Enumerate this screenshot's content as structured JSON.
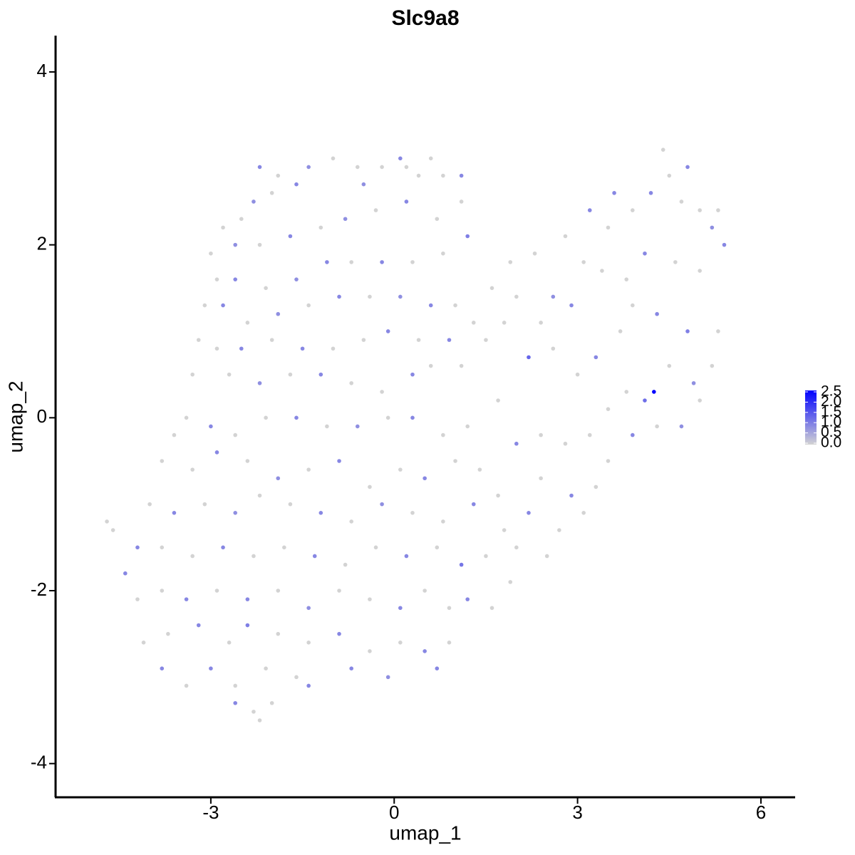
{
  "chart_data": {
    "type": "scatter",
    "title": "Slc9a8",
    "xlabel": "umap_1",
    "ylabel": "umap_2",
    "xlim": [
      -5.54,
      6.56
    ],
    "ylim": [
      -4.39,
      4.42
    ],
    "xticks": [
      -3,
      0,
      3,
      6
    ],
    "yticks": [
      -4,
      -2,
      0,
      2,
      4
    ],
    "color_low": "#d3d3d3",
    "color_high": "#0000ff",
    "color_lim": [
      0,
      2.5
    ],
    "color_ticks": [
      {
        "value": 0,
        "label": "0.0"
      },
      {
        "value": 0.5,
        "label": "0.5"
      },
      {
        "value": 1,
        "label": "1.0"
      },
      {
        "value": 1.5,
        "label": "1.5"
      },
      {
        "value": 2,
        "label": "2.0"
      },
      {
        "value": 2.5,
        "label": "2.5"
      }
    ],
    "x": [
      -2.2,
      -1.9,
      -1.4,
      -1.0,
      -0.6,
      -0.2,
      0.1,
      0.2,
      0.6,
      1.1,
      0.8,
      0.4,
      -0.5,
      -1.6,
      -2.0,
      -2.3,
      -2.5,
      -2.8,
      -2.6,
      -2.2,
      -1.7,
      -1.2,
      -0.8,
      -0.3,
      0.2,
      0.7,
      1.2,
      1.1,
      -3.0,
      -2.9,
      -2.6,
      -2.1,
      -1.6,
      -1.1,
      -0.7,
      -0.2,
      0.3,
      0.8,
      -3.1,
      -2.8,
      -2.4,
      -1.9,
      -1.4,
      -0.9,
      -0.4,
      0.1,
      0.6,
      1.0,
      1.3,
      -3.2,
      -2.9,
      -2.5,
      -2.0,
      -1.5,
      -1.0,
      -0.5,
      -0.1,
      0.4,
      0.9,
      -3.3,
      -2.7,
      -2.2,
      -1.7,
      -1.2,
      -0.7,
      -0.2,
      0.3,
      0.6,
      1.1,
      -3.6,
      -3.4,
      -3.0,
      -2.6,
      -2.1,
      -1.6,
      -1.1,
      -0.6,
      -0.1,
      0.3,
      0.8,
      1.2,
      -3.8,
      -3.3,
      -2.9,
      -2.4,
      -1.9,
      -1.4,
      -0.9,
      -0.4,
      0.1,
      0.5,
      1.0,
      1.4,
      -4.0,
      -3.6,
      -3.1,
      -2.6,
      -2.2,
      -1.7,
      -1.2,
      -0.7,
      -0.2,
      0.3,
      0.8,
      1.3,
      1.7,
      -4.7,
      -4.6,
      -4.2,
      -3.8,
      -3.3,
      -2.8,
      -2.3,
      -1.8,
      -1.3,
      -0.8,
      -0.3,
      0.2,
      0.7,
      1.1,
      1.5,
      2.0,
      -4.4,
      -4.2,
      -3.8,
      -3.4,
      -2.9,
      -2.4,
      -1.9,
      -1.4,
      -0.9,
      -0.4,
      0.1,
      0.5,
      0.9,
      1.2,
      -4.1,
      -3.7,
      -3.2,
      -2.7,
      -2.4,
      -1.9,
      -1.4,
      -0.9,
      -0.4,
      0.1,
      0.5,
      0.9,
      -3.8,
      -3.4,
      -3.0,
      -2.6,
      -2.1,
      -1.6,
      -1.4,
      -0.7,
      -0.1,
      0.7,
      -2.6,
      -2.3,
      -2.2,
      -2.0,
      1.6,
      1.9,
      2.0,
      2.3,
      2.6,
      2.8,
      3.1,
      3.2,
      3.5,
      3.6,
      3.9,
      4.2,
      4.4,
      4.5,
      4.8,
      4.7,
      5.0,
      5.2,
      5.3,
      5.4,
      5.0,
      4.6,
      4.1,
      3.8,
      3.4,
      2.9,
      2.4,
      1.8,
      1.5,
      2.2,
      2.6,
      3.0,
      3.3,
      3.7,
      3.9,
      4.3,
      4.8,
      5.3,
      5.2,
      4.9,
      4.5,
      4.25,
      4.1,
      3.8,
      3.5,
      3.2,
      3.5,
      3.9,
      4.3,
      4.7,
      5.0,
      2.8,
      2.4,
      2.0,
      1.7,
      2.4,
      2.9,
      3.1,
      2.7,
      2.2,
      1.8,
      3.3,
      2.5,
      1.9,
      1.6
    ],
    "y": [
      2.9,
      2.8,
      2.9,
      3.0,
      2.9,
      2.9,
      3.0,
      2.9,
      3.0,
      2.8,
      2.8,
      2.8,
      2.7,
      2.7,
      2.6,
      2.5,
      2.3,
      2.2,
      2.0,
      2.0,
      2.1,
      2.2,
      2.3,
      2.4,
      2.5,
      2.3,
      2.1,
      2.5,
      1.9,
      1.6,
      1.6,
      1.5,
      1.6,
      1.8,
      1.8,
      1.8,
      1.8,
      1.9,
      1.3,
      1.3,
      1.1,
      1.2,
      1.3,
      1.4,
      1.4,
      1.4,
      1.3,
      1.3,
      1.1,
      0.9,
      0.8,
      0.8,
      0.9,
      0.8,
      0.8,
      0.9,
      1.0,
      0.9,
      0.9,
      0.5,
      0.5,
      0.4,
      0.5,
      0.5,
      0.4,
      0.3,
      0.5,
      0.6,
      0.6,
      -0.2,
      0.0,
      -0.1,
      -0.2,
      0.0,
      0.0,
      -0.1,
      -0.1,
      0.0,
      0.0,
      -0.2,
      -0.1,
      -0.5,
      -0.6,
      -0.4,
      -0.5,
      -0.7,
      -0.6,
      -0.5,
      -0.8,
      -0.6,
      -0.7,
      -0.5,
      -0.6,
      -1.0,
      -1.1,
      -1.0,
      -1.1,
      -0.9,
      -1.0,
      -1.1,
      -1.2,
      -1.0,
      -1.1,
      -1.2,
      -1.0,
      -0.9,
      -1.2,
      -1.3,
      -1.5,
      -1.5,
      -1.6,
      -1.5,
      -1.6,
      -1.5,
      -1.6,
      -1.7,
      -1.5,
      -1.6,
      -1.5,
      -1.7,
      -1.6,
      -1.5,
      -1.8,
      -2.1,
      -2.0,
      -2.1,
      -2.0,
      -2.1,
      -2.0,
      -2.2,
      -2.0,
      -2.1,
      -2.2,
      -2.0,
      -2.2,
      -2.1,
      -2.6,
      -2.5,
      -2.4,
      -2.6,
      -2.4,
      -2.5,
      -2.6,
      -2.5,
      -2.7,
      -2.6,
      -2.7,
      -2.6,
      -2.9,
      -3.1,
      -2.9,
      -3.1,
      -2.9,
      -3.0,
      -3.1,
      -2.9,
      -3.0,
      -2.9,
      -3.3,
      -3.4,
      -3.5,
      -3.3,
      1.5,
      1.8,
      1.4,
      1.9,
      1.4,
      2.1,
      1.8,
      2.4,
      2.2,
      2.6,
      2.4,
      2.6,
      3.1,
      2.8,
      2.9,
      2.5,
      2.4,
      2.2,
      2.4,
      2.0,
      1.7,
      1.8,
      1.9,
      1.6,
      1.7,
      1.3,
      1.1,
      1.1,
      0.9,
      0.7,
      0.8,
      0.5,
      0.7,
      1.0,
      1.3,
      1.2,
      1.0,
      1.0,
      0.6,
      0.4,
      0.6,
      0.3,
      0.2,
      0.3,
      0.1,
      -0.2,
      -0.5,
      -0.2,
      -0.1,
      -0.1,
      0.2,
      -0.3,
      -0.2,
      -0.3,
      0.2,
      -0.7,
      -0.9,
      -1.1,
      -1.3,
      -1.1,
      -1.3,
      -0.8,
      -1.6,
      -1.9,
      -2.2
    ],
    "values": [
      0.9,
      0,
      0.8,
      0,
      0,
      0,
      0.9,
      0,
      0,
      0.9,
      0,
      0,
      0.8,
      0.9,
      0,
      0.8,
      0,
      0,
      0.8,
      0,
      0.9,
      0,
      0.8,
      0,
      0.9,
      0,
      1.0,
      0,
      0,
      0,
      0.9,
      0,
      0.8,
      0.9,
      0,
      0.9,
      0,
      0,
      0,
      0.9,
      0,
      0.8,
      0,
      0.9,
      0,
      0.8,
      0.9,
      0,
      0,
      0,
      0,
      0.9,
      0,
      0.9,
      0,
      0,
      0.9,
      0,
      0.9,
      0,
      0,
      0.8,
      0,
      0.9,
      0,
      0,
      0.9,
      0,
      0,
      0,
      0,
      0.9,
      0,
      0,
      0.9,
      0,
      0.8,
      0,
      0.9,
      0,
      0,
      0,
      0,
      0.9,
      0,
      0.8,
      0,
      0.9,
      0,
      0,
      0.9,
      0,
      0,
      0,
      0.9,
      0,
      0.8,
      0,
      0,
      0.9,
      0,
      0.8,
      0,
      0,
      0.9,
      0,
      0,
      0,
      0.9,
      0,
      0,
      0.9,
      0,
      0,
      0.9,
      0,
      0,
      0.9,
      0,
      1.1,
      0,
      0,
      0.9,
      0,
      0,
      0.9,
      0,
      0.9,
      0,
      0.8,
      0,
      0,
      0.9,
      0,
      0,
      0.9,
      0,
      0,
      0.9,
      0,
      1.0,
      0,
      0,
      0.9,
      0,
      0,
      0.9,
      0,
      0.9,
      0,
      0.9,
      0,
      0,
      0,
      0.9,
      0.9,
      0.8,
      0.9,
      0.9,
      0,
      0,
      0,
      0,
      0,
      0,
      0,
      0.8,
      0,
      0,
      0.9,
      0,
      0.9,
      0,
      0.9,
      0,
      0,
      0.9,
      0,
      0,
      0.8,
      0,
      0.9,
      0,
      0,
      0.9,
      0,
      0,
      0.9,
      0,
      0,
      0,
      1.3,
      0,
      0,
      0.9,
      0,
      0,
      0.9,
      1.0,
      0,
      0,
      0.8,
      0,
      2.5,
      1.2,
      0,
      0,
      0,
      0,
      0.9,
      0,
      0.8,
      0,
      0,
      0,
      0.9,
      0,
      0,
      0.9,
      0,
      0,
      0.9,
      0,
      0,
      0,
      0,
      0
    ]
  }
}
